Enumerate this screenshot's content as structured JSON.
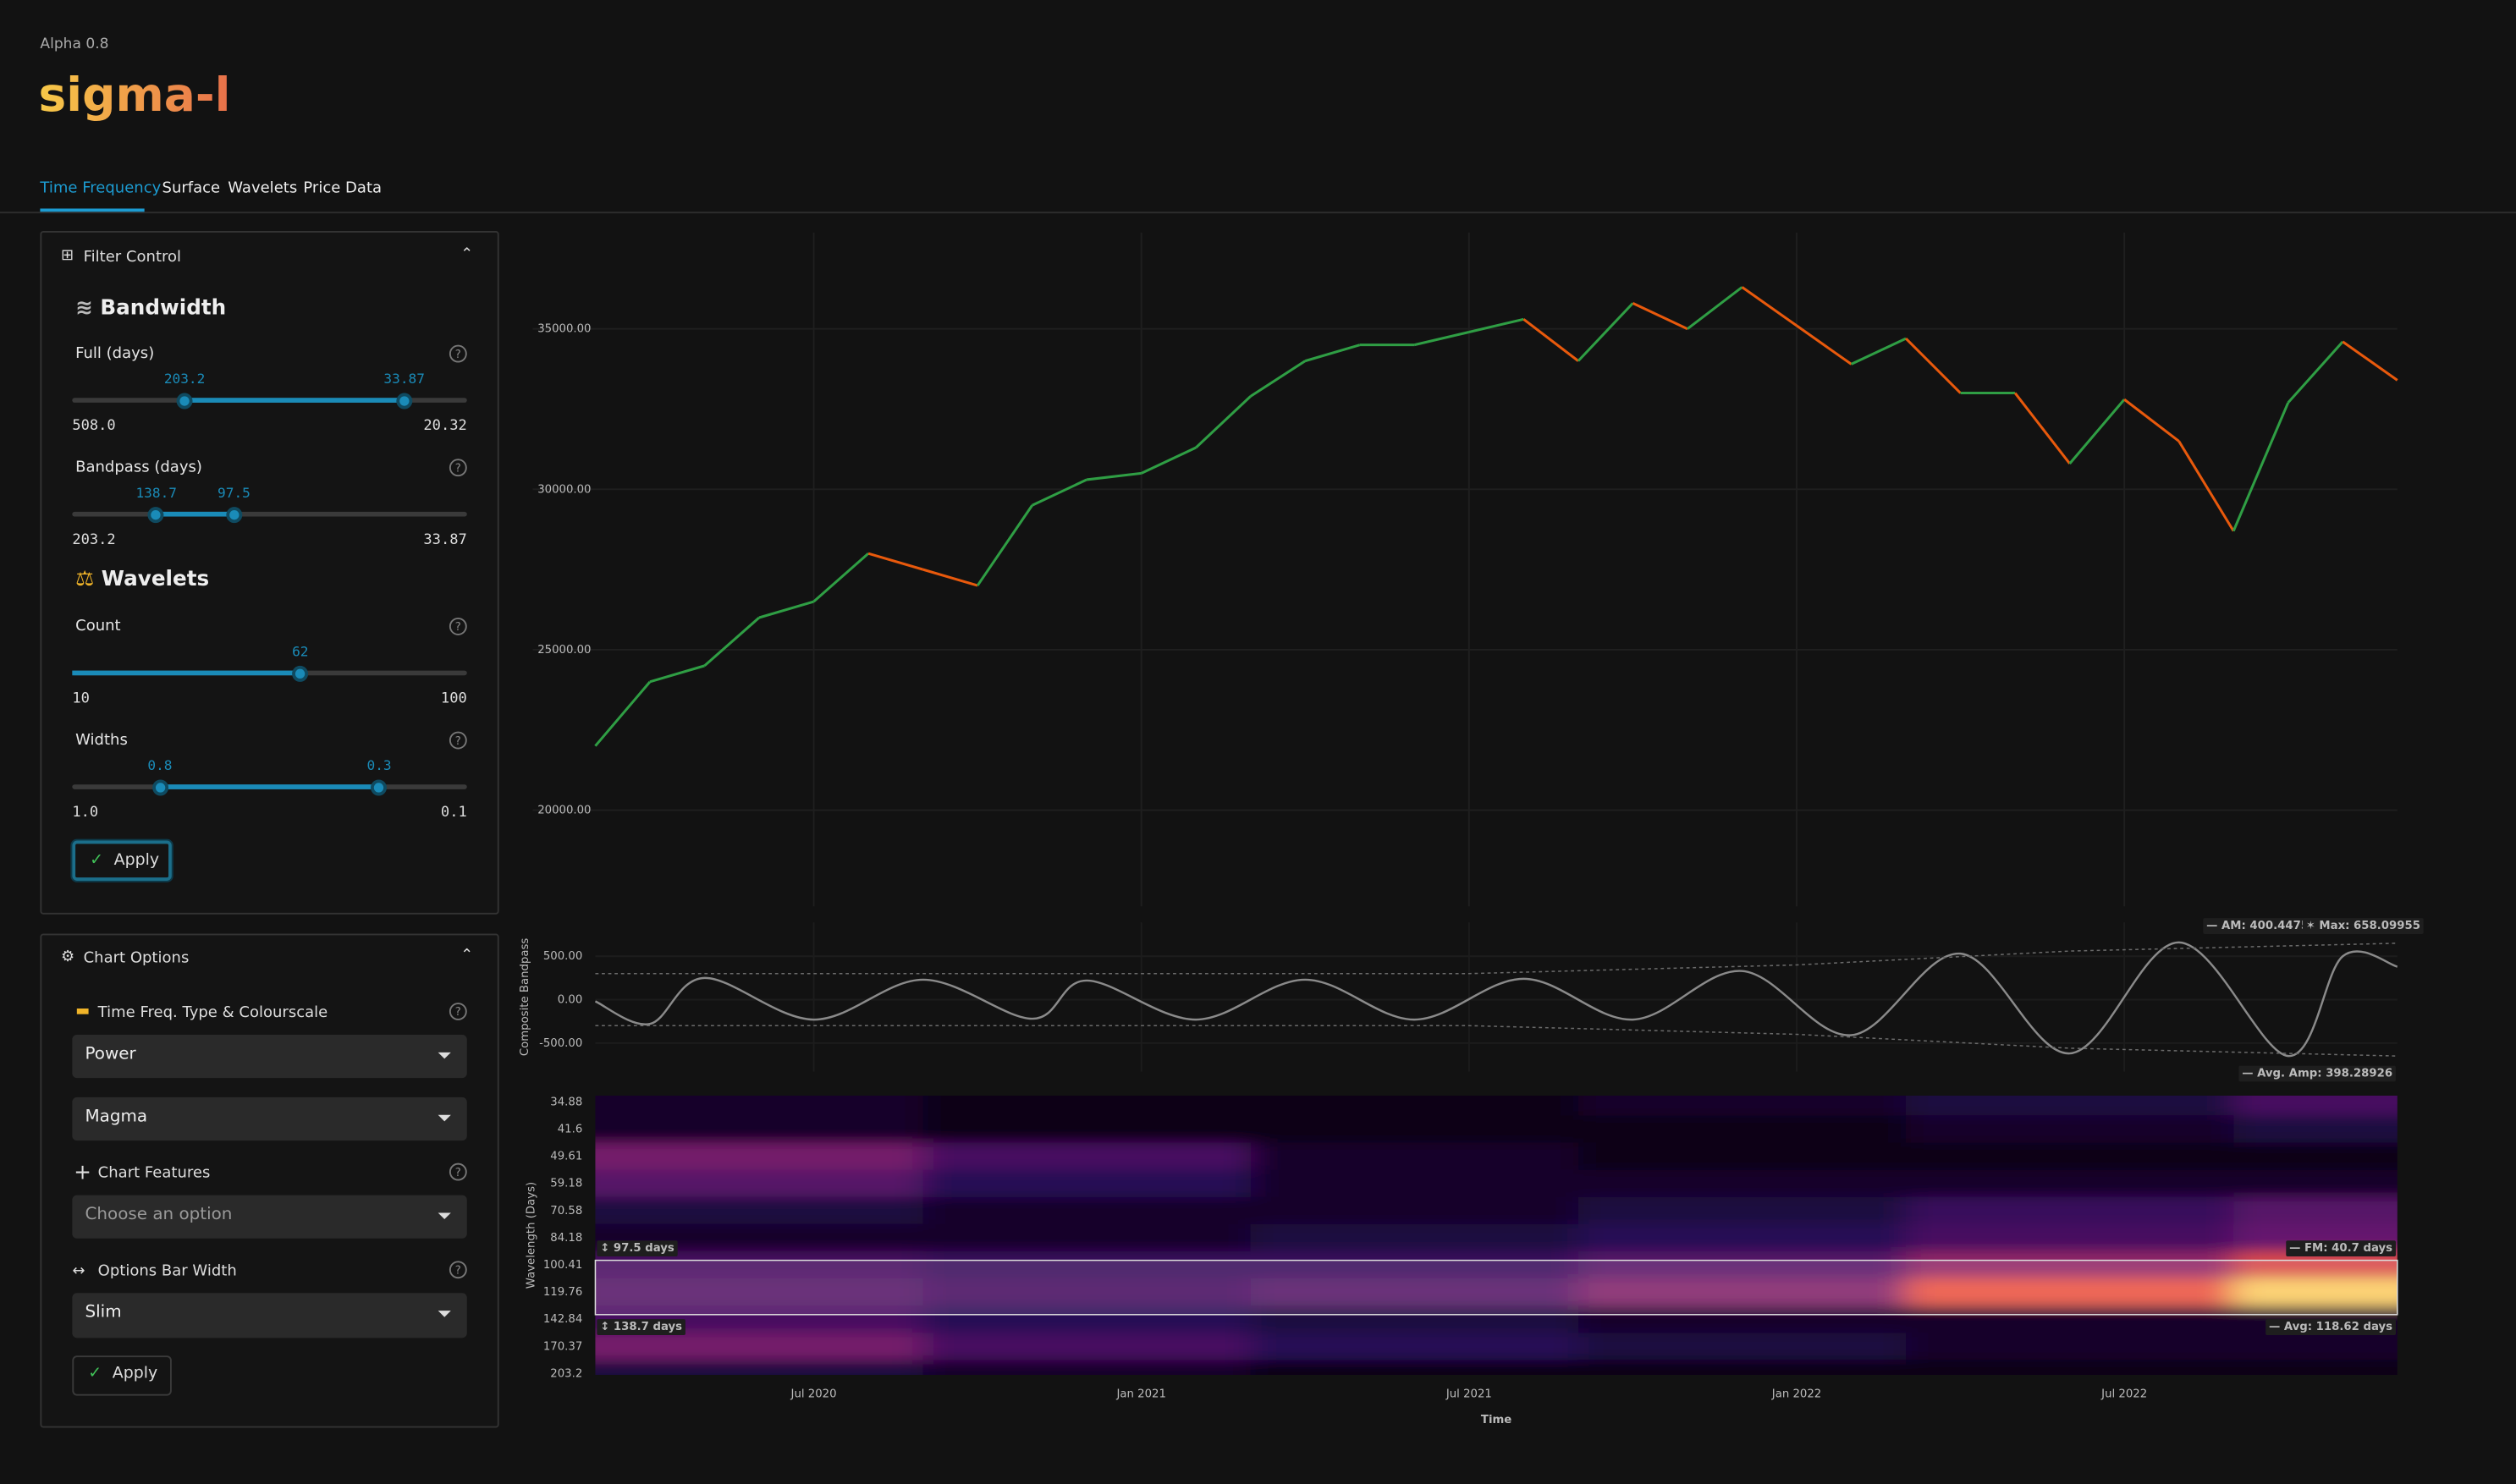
{
  "header": {
    "version": "Alpha 0.8",
    "title": "sigma-l"
  },
  "tabs": [
    "Time Frequency",
    "Surface",
    "Wavelets",
    "Price Data"
  ],
  "active_tab": 0,
  "filter_control": {
    "title": "Filter Control",
    "bandwidth_title": "Bandwidth",
    "wavelets_title": "Wavelets",
    "sliders": [
      {
        "label": "Full (days)",
        "range": [
          {
            "value": 508,
            "label": "508.0"
          },
          20.32
        ],
        "values": [
          203.2,
          33.87
        ],
        "scale": "log"
      },
      {
        "label": "Bandpass (days)",
        "range": [
          203.2,
          33.87
        ],
        "values": [
          138.7,
          97.5
        ],
        "scale": "log"
      },
      {
        "label": "Count",
        "range": [
          10,
          100
        ],
        "values": [
          62
        ],
        "scale": "linear"
      },
      {
        "label": "Widths",
        "range": [
          {
            "value": 1,
            "label": "1.0"
          },
          0.1
        ],
        "values": [
          0.8,
          0.3
        ],
        "scale": "linear"
      }
    ],
    "apply": "Apply"
  },
  "chart_options": {
    "title": "Chart Options",
    "type_label": "Time Freq. Type & Colourscale",
    "type": "Power",
    "colourscale": "Magma",
    "features_label": "Chart Features",
    "features_placeholder": "Choose an option",
    "bar_width_label": "Options Bar Width",
    "bar_width": "Slim",
    "apply": "Apply"
  },
  "chart_data": [
    {
      "type": "price",
      "x": [
        "2020-03",
        "2020-04",
        "2020-05",
        "2020-06",
        "2020-07",
        "2020-08",
        "2020-09",
        "2020-10",
        "2020-11",
        "2020-12",
        "2021-01",
        "2021-02",
        "2021-03",
        "2021-04",
        "2021-05",
        "2021-06",
        "2021-07",
        "2021-08",
        "2021-09",
        "2021-10",
        "2021-11",
        "2021-12",
        "2022-01",
        "2022-02",
        "2022-03",
        "2022-04",
        "2022-05",
        "2022-06",
        "2022-07",
        "2022-08",
        "2022-09",
        "2022-10",
        "2022-11",
        "2022-12"
      ],
      "values": [
        22000,
        24000,
        24500,
        26000,
        26500,
        28000,
        27500,
        27000,
        29500,
        30300,
        30500,
        31300,
        32900,
        34000,
        34500,
        34500,
        34900,
        35300,
        34000,
        35800,
        35000,
        36300,
        35100,
        33900,
        34700,
        33000,
        33000,
        30800,
        32800,
        31500,
        28700,
        32700,
        34600,
        33400
      ],
      "up_color": "#2f9e44",
      "down_color": "#e8590c",
      "xlim": [
        "2020-03",
        "2022-12"
      ],
      "ylim": [
        17000,
        38000
      ],
      "yticks": [
        {
          "value": 20000,
          "label": "20000.00"
        },
        {
          "value": 25000,
          "label": "25000.00"
        },
        {
          "value": 30000,
          "label": "30000.00"
        },
        {
          "value": 35000,
          "label": "35000.00"
        }
      ],
      "grid": true
    },
    {
      "type": "line",
      "y_label": "Composite Bandpass",
      "series": [
        {
          "color": "#8a8a8a",
          "smooth": true,
          "x": [
            "2020-03",
            "2020-04",
            "2020-05",
            "2020-07",
            "2020-09",
            "2020-11",
            "2020-12",
            "2021-02",
            "2021-04",
            "2021-06",
            "2021-08",
            "2021-10",
            "2021-12",
            "2022-02",
            "2022-04",
            "2022-06",
            "2022-08",
            "2022-10",
            "2022-11",
            "2022-12"
          ],
          "values": [
            -20,
            -280,
            250,
            -230,
            230,
            -220,
            220,
            -230,
            230,
            -230,
            240,
            -230,
            330,
            -410,
            530,
            -620,
            660,
            -650,
            500,
            380
          ]
        },
        {
          "color": "#6a6a6a",
          "dash": true,
          "x": [
            "2020-03",
            "2021-07",
            "2022-01",
            "2022-06",
            "2022-12"
          ],
          "values": [
            300,
            300,
            400,
            560,
            650
          ]
        },
        {
          "color": "#6a6a6a",
          "dash": true,
          "x": [
            "2020-03",
            "2021-07",
            "2022-01",
            "2022-06",
            "2022-12"
          ],
          "values": [
            -300,
            -300,
            -400,
            -560,
            -650
          ]
        }
      ],
      "annotations": [
        "— AM: 400.44751",
        "✶ Max: 658.09955",
        "— Avg. Amp: 398.28926"
      ],
      "xlim": [
        "2020-03",
        "2022-12"
      ],
      "ylim": [
        -830,
        890
      ],
      "yticks": [
        {
          "value": -500,
          "label": "-500.00"
        },
        {
          "value": 0,
          "label": "0.00"
        },
        {
          "value": 500,
          "label": "500.00"
        }
      ]
    },
    {
      "type": "heatmap",
      "y_label": "Wavelength (Days)",
      "x_label": "Time",
      "colorscale": "magma",
      "log_y": true,
      "x": [
        "2020-03",
        "2020-09",
        "2021-03",
        "2021-09",
        "2022-03",
        "2022-09"
      ],
      "z": [
        [
          0.1,
          0.05,
          0.05,
          0.1,
          0.15,
          0.3
        ],
        [
          0.1,
          0.05,
          0.05,
          0.05,
          0.1,
          0.15
        ],
        [
          0.45,
          0.3,
          0.1,
          0.05,
          0.05,
          0.05
        ],
        [
          0.35,
          0.2,
          0.1,
          0.1,
          0.1,
          0.1
        ],
        [
          0.15,
          0.1,
          0.1,
          0.15,
          0.25,
          0.35
        ],
        [
          0.1,
          0.1,
          0.15,
          0.2,
          0.3,
          0.4
        ],
        [
          0.3,
          0.25,
          0.25,
          0.35,
          0.55,
          0.75
        ],
        [
          0.35,
          0.3,
          0.35,
          0.5,
          0.8,
          0.95
        ],
        [
          0.3,
          0.2,
          0.15,
          0.1,
          0.1,
          0.1
        ],
        [
          0.45,
          0.3,
          0.2,
          0.15,
          0.1,
          0.1
        ],
        [
          0.15,
          0.1,
          0.05,
          0.05,
          0.05,
          0.05
        ]
      ],
      "annotations": [
        "↕ 97.5 days",
        "↕ 138.7 days",
        "— FM: 40.7 days",
        "— Avg: 118.62 days"
      ],
      "xlim": [
        "2020-03",
        "2022-12"
      ],
      "ylim": [
        33.5,
        205
      ],
      "yticks": [
        34.88,
        41.6,
        49.61,
        59.18,
        70.58,
        84.18,
        100.41,
        119.76,
        142.84,
        170.37,
        203.2
      ],
      "xticks": [
        {
          "value": "2020-07",
          "label": "Jul 2020"
        },
        {
          "value": "2021-01",
          "label": "Jan 2021"
        },
        {
          "value": "2021-07",
          "label": "Jul 2021"
        },
        {
          "value": "2022-01",
          "label": "Jan 2022"
        },
        {
          "value": "2022-07",
          "label": "Jul 2022"
        }
      ]
    }
  ]
}
